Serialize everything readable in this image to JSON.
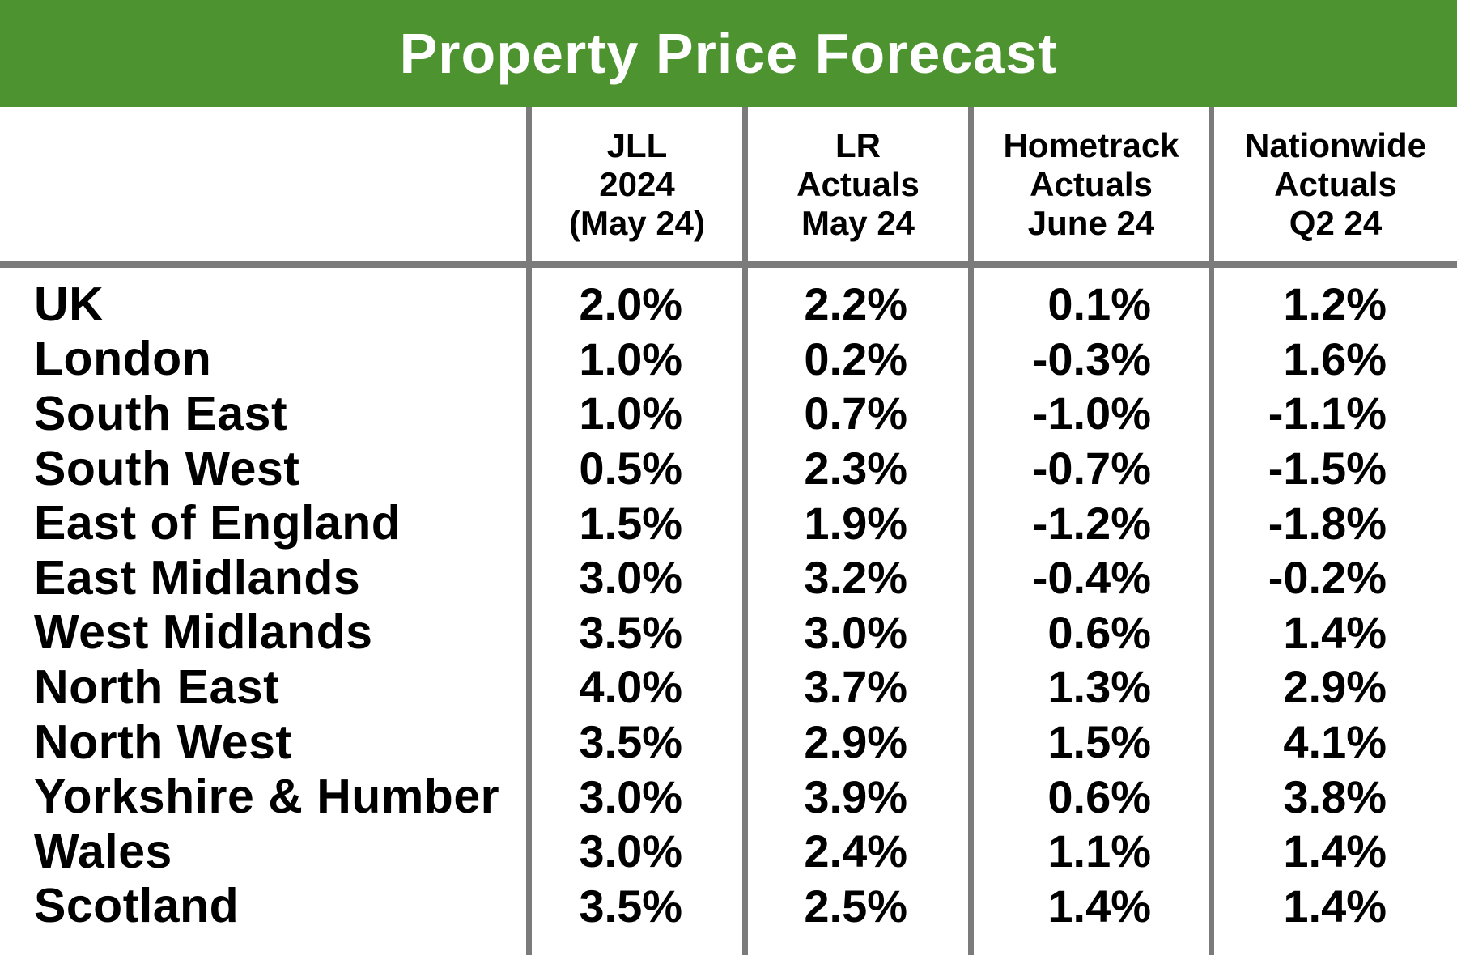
{
  "title": "Property Price Forecast",
  "colors": {
    "header_green": "#4d9330",
    "line_gray": "#7b7b7b",
    "title_text": "#ffffff",
    "body_text": "#000000",
    "background": "#ffffff"
  },
  "chart_data": {
    "type": "table",
    "title": "Property Price Forecast",
    "columns": [
      "JLL 2024 (May 24)",
      "LR Actuals May 24",
      "Hometrack Actuals June 24",
      "Nationwide Actuals Q2 24"
    ],
    "header_lines": [
      [
        "JLL",
        "2024",
        "(May 24)"
      ],
      [
        "LR",
        "Actuals",
        "May 24"
      ],
      [
        "Hometrack",
        "Actuals",
        "June 24"
      ],
      [
        "Nationwide",
        "Actuals",
        "Q2 24"
      ]
    ],
    "rows": [
      {
        "region": "UK",
        "values": [
          "2.0%",
          "2.2%",
          "0.1%",
          "1.2%"
        ]
      },
      {
        "region": "London",
        "values": [
          "1.0%",
          "0.2%",
          "-0.3%",
          "1.6%"
        ]
      },
      {
        "region": "South East",
        "values": [
          "1.0%",
          "0.7%",
          "-1.0%",
          "-1.1%"
        ]
      },
      {
        "region": "South West",
        "values": [
          "0.5%",
          "2.3%",
          "-0.7%",
          "-1.5%"
        ]
      },
      {
        "region": "East of England",
        "values": [
          "1.5%",
          "1.9%",
          "-1.2%",
          "-1.8%"
        ]
      },
      {
        "region": "East Midlands",
        "values": [
          "3.0%",
          "3.2%",
          "-0.4%",
          "-0.2%"
        ]
      },
      {
        "region": "West Midlands",
        "values": [
          "3.5%",
          "3.0%",
          "0.6%",
          "1.4%"
        ]
      },
      {
        "region": "North East",
        "values": [
          "4.0%",
          "3.7%",
          "1.3%",
          "2.9%"
        ]
      },
      {
        "region": "North West",
        "values": [
          "3.5%",
          "2.9%",
          "1.5%",
          "4.1%"
        ]
      },
      {
        "region": "Yorkshire & Humber",
        "values": [
          "3.0%",
          "3.9%",
          "0.6%",
          "3.8%"
        ]
      },
      {
        "region": "Wales",
        "values": [
          "3.0%",
          "2.4%",
          "1.1%",
          "1.4%"
        ]
      },
      {
        "region": "Scotland",
        "values": [
          "3.5%",
          "2.5%",
          "1.4%",
          "1.4%"
        ]
      }
    ]
  }
}
